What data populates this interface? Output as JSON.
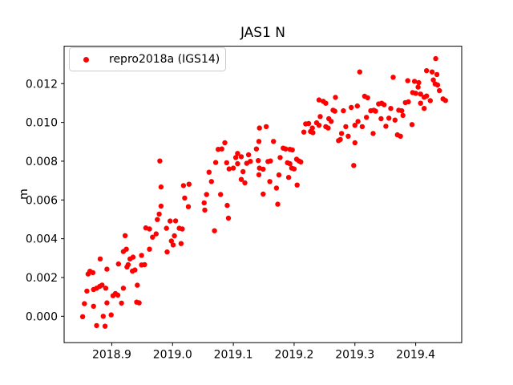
{
  "chart_data": {
    "type": "scatter",
    "title": "JAS1 N",
    "xlabel": "",
    "ylabel": "m",
    "xlim": [
      2018.8216,
      2019.4757
    ],
    "ylim": [
      -0.00136,
      0.01393
    ],
    "x_tick_values": [
      2018.9,
      2019.0,
      2019.1,
      2019.2,
      2019.3,
      2019.4
    ],
    "x_tick_labels": [
      "2018.9",
      "2019.0",
      "2019.1",
      "2019.2",
      "2019.3",
      "2019.4"
    ],
    "y_tick_values": [
      0.0,
      0.002,
      0.004,
      0.006,
      0.008,
      0.01,
      0.012
    ],
    "y_tick_labels": [
      "0.000",
      "0.002",
      "0.004",
      "0.006",
      "0.008",
      "0.010",
      "0.012"
    ],
    "grid": false,
    "legend": {
      "position": "upper-left",
      "entries": [
        {
          "label": "repro2018a (IGS14)",
          "color": "#ff0000",
          "marker": "dot"
        }
      ]
    },
    "series": [
      {
        "name": "repro2018a (IGS14)",
        "color": "#ff0000",
        "points": [
          [
            2018.981,
            0.00568
          ],
          [
            2018.978,
            0.00527
          ],
          [
            2018.975,
            0.00499
          ],
          [
            2018.956,
            0.00456
          ],
          [
            2018.962,
            0.0045
          ],
          [
            2018.973,
            0.00425
          ],
          [
            2018.967,
            0.00408
          ],
          [
            2018.922,
            0.00416
          ],
          [
            2018.962,
            0.00346
          ],
          [
            2018.924,
            0.00346
          ],
          [
            2018.919,
            0.00334
          ],
          [
            2018.949,
            0.00314
          ],
          [
            2018.93,
            0.00296
          ],
          [
            2018.935,
            0.00305
          ],
          [
            2018.881,
            0.00296
          ],
          [
            2018.949,
            0.00265
          ],
          [
            2018.954,
            0.00266
          ],
          [
            2018.911,
            0.0027
          ],
          [
            2018.927,
            0.00266
          ],
          [
            2018.925,
            0.00254
          ],
          [
            2018.892,
            0.00243
          ],
          [
            2018.864,
            0.00232
          ],
          [
            2018.869,
            0.00225
          ],
          [
            2018.861,
            0.00218
          ],
          [
            2018.934,
            0.00233
          ],
          [
            2018.938,
            0.00239
          ],
          [
            2018.88,
            0.00154
          ],
          [
            2018.884,
            0.00161
          ],
          [
            2018.875,
            0.00145
          ],
          [
            2018.89,
            0.00145
          ],
          [
            2018.87,
            0.00138
          ],
          [
            2018.859,
            0.0013
          ],
          [
            2018.906,
            0.00117
          ],
          [
            2018.91,
            0.00109
          ],
          [
            2018.902,
            0.00106
          ],
          [
            2018.919,
            0.00145
          ],
          [
            2018.942,
            0.0016
          ],
          [
            2018.892,
            0.00069
          ],
          [
            2018.87,
            0.00052
          ],
          [
            2018.855,
            0.00065
          ],
          [
            2018.916,
            0.00068
          ],
          [
            2018.941,
            0.00073
          ],
          [
            2018.945,
            0.00069
          ],
          [
            2018.852,
            -2e-05
          ],
          [
            2018.886,
            0.0
          ],
          [
            2018.899,
            7e-05
          ],
          [
            2018.875,
            -0.00048
          ],
          [
            2018.889,
            -0.00051
          ],
          [
            2019.02,
            0.0061
          ],
          [
            2019.056,
            0.00628
          ],
          [
            2019.079,
            0.00628
          ],
          [
            2019.026,
            0.00565
          ],
          [
            2019.052,
            0.00585
          ],
          [
            2019.09,
            0.00572
          ],
          [
            2019.053,
            0.00548
          ],
          [
            2018.996,
            0.00491
          ],
          [
            2019.005,
            0.00492
          ],
          [
            2018.99,
            0.00454
          ],
          [
            2019.011,
            0.00454
          ],
          [
            2019.016,
            0.0045
          ],
          [
            2019.092,
            0.00506
          ],
          [
            2019.069,
            0.00441
          ],
          [
            2019.003,
            0.00415
          ],
          [
            2018.998,
            0.00388
          ],
          [
            2019.014,
            0.00375
          ],
          [
            2019.001,
            0.00368
          ],
          [
            2018.991,
            0.00332
          ],
          [
            2019.143,
            0.00971
          ],
          [
            2019.142,
            0.00902
          ],
          [
            2019.086,
            0.00895
          ],
          [
            2019.075,
            0.00861
          ],
          [
            2019.081,
            0.00863
          ],
          [
            2019.138,
            0.00863
          ],
          [
            2019.107,
            0.0084
          ],
          [
            2019.113,
            0.00823
          ],
          [
            2019.104,
            0.00819
          ],
          [
            2019.125,
            0.00833
          ],
          [
            2019.128,
            0.00799
          ],
          [
            2019.141,
            0.00803
          ],
          [
            2019.071,
            0.00793
          ],
          [
            2019.089,
            0.00792
          ],
          [
            2019.107,
            0.00787
          ],
          [
            2019.122,
            0.00789
          ],
          [
            2019.1,
            0.00764
          ],
          [
            2019.093,
            0.0076
          ],
          [
            2019.06,
            0.00743
          ],
          [
            2019.143,
            0.00764
          ],
          [
            2019.116,
            0.00746
          ],
          [
            2019.142,
            0.0073
          ],
          [
            2019.113,
            0.00706
          ],
          [
            2019.064,
            0.00695
          ],
          [
            2019.119,
            0.00688
          ],
          [
            2019.027,
            0.00681
          ],
          [
            2019.018,
            0.00674
          ],
          [
            2018.979,
            0.00801
          ],
          [
            2018.981,
            0.00667
          ],
          [
            2019.241,
            0.01116
          ],
          [
            2019.248,
            0.01109
          ],
          [
            2019.252,
            0.01099
          ],
          [
            2019.268,
            0.01129
          ],
          [
            2019.264,
            0.01063
          ],
          [
            2019.267,
            0.01058
          ],
          [
            2019.281,
            0.0106
          ],
          [
            2019.294,
            0.01077
          ],
          [
            2019.304,
            0.01085
          ],
          [
            2019.243,
            0.0103
          ],
          [
            2019.257,
            0.01019
          ],
          [
            2019.219,
            0.00992
          ],
          [
            2019.224,
            0.00994
          ],
          [
            2019.237,
            0.00998
          ],
          [
            2019.241,
            0.00985
          ],
          [
            2019.261,
            0.01005
          ],
          [
            2019.252,
            0.00978
          ],
          [
            2019.256,
            0.00971
          ],
          [
            2019.23,
            0.00971
          ],
          [
            2019.227,
            0.00953
          ],
          [
            2019.216,
            0.0095
          ],
          [
            2019.231,
            0.00947
          ],
          [
            2019.305,
            0.01005
          ],
          [
            2019.3,
            0.00985
          ],
          [
            2019.285,
            0.00978
          ],
          [
            2019.278,
            0.00943
          ],
          [
            2019.289,
            0.00929
          ],
          [
            2019.154,
            0.00978
          ],
          [
            2019.273,
            0.00906
          ],
          [
            2019.276,
            0.00912
          ],
          [
            2019.3,
            0.00895
          ],
          [
            2019.166,
            0.00902
          ],
          [
            2019.182,
            0.00867
          ],
          [
            2019.186,
            0.00863
          ],
          [
            2019.193,
            0.00861
          ],
          [
            2019.197,
            0.00858
          ],
          [
            2019.157,
            0.00798
          ],
          [
            2019.161,
            0.00801
          ],
          [
            2019.177,
            0.00819
          ],
          [
            2019.189,
            0.00792
          ],
          [
            2019.193,
            0.00787
          ],
          [
            2019.204,
            0.0081
          ],
          [
            2019.208,
            0.00801
          ],
          [
            2019.211,
            0.00796
          ],
          [
            2019.196,
            0.00764
          ],
          [
            2019.2,
            0.0076
          ],
          [
            2019.175,
            0.00729
          ],
          [
            2019.191,
            0.00716
          ],
          [
            2019.205,
            0.00677
          ],
          [
            2019.16,
            0.00695
          ],
          [
            2019.171,
            0.00661
          ],
          [
            2019.308,
            0.0126
          ],
          [
            2019.298,
            0.00778
          ],
          [
            2019.433,
            0.01329
          ],
          [
            2019.418,
            0.01267
          ],
          [
            2019.427,
            0.0126
          ],
          [
            2019.435,
            0.01247
          ],
          [
            2019.363,
            0.01233
          ],
          [
            2019.387,
            0.01215
          ],
          [
            2019.398,
            0.01212
          ],
          [
            2019.405,
            0.01205
          ],
          [
            2019.429,
            0.01219
          ],
          [
            2019.432,
            0.01198
          ],
          [
            2019.436,
            0.01193
          ],
          [
            2019.404,
            0.01182
          ],
          [
            2019.439,
            0.01164
          ],
          [
            2019.395,
            0.01154
          ],
          [
            2019.4,
            0.0115
          ],
          [
            2019.408,
            0.01146
          ],
          [
            2019.414,
            0.0113
          ],
          [
            2019.418,
            0.01136
          ],
          [
            2019.316,
            0.01135
          ],
          [
            2019.321,
            0.01127
          ],
          [
            2019.339,
            0.01095
          ],
          [
            2019.344,
            0.01099
          ],
          [
            2019.348,
            0.01091
          ],
          [
            2019.383,
            0.01102
          ],
          [
            2019.388,
            0.01106
          ],
          [
            2019.408,
            0.01099
          ],
          [
            2019.424,
            0.01112
          ],
          [
            2019.445,
            0.01121
          ],
          [
            2019.449,
            0.01113
          ],
          [
            2019.326,
            0.0106
          ],
          [
            2019.331,
            0.01063
          ],
          [
            2019.334,
            0.01058
          ],
          [
            2019.359,
            0.01072
          ],
          [
            2019.372,
            0.01063
          ],
          [
            2019.377,
            0.0106
          ],
          [
            2019.414,
            0.01072
          ],
          [
            2019.319,
            0.01026
          ],
          [
            2019.343,
            0.01019
          ],
          [
            2019.356,
            0.01022
          ],
          [
            2019.366,
            0.01012
          ],
          [
            2019.379,
            0.01036
          ],
          [
            2019.394,
            0.00989
          ],
          [
            2019.351,
            0.0098
          ],
          [
            2019.33,
            0.00943
          ],
          [
            2019.37,
            0.00936
          ],
          [
            2019.375,
            0.00929
          ],
          [
            2019.312,
            0.00978
          ],
          [
            2019.173,
            0.00578
          ],
          [
            2019.149,
            0.0063
          ],
          [
            2019.149,
            0.00759
          ]
        ]
      }
    ]
  },
  "colors": {
    "marker": "#ff0000",
    "axis": "#000000",
    "legend_border": "#cccccc",
    "background": "#ffffff"
  }
}
